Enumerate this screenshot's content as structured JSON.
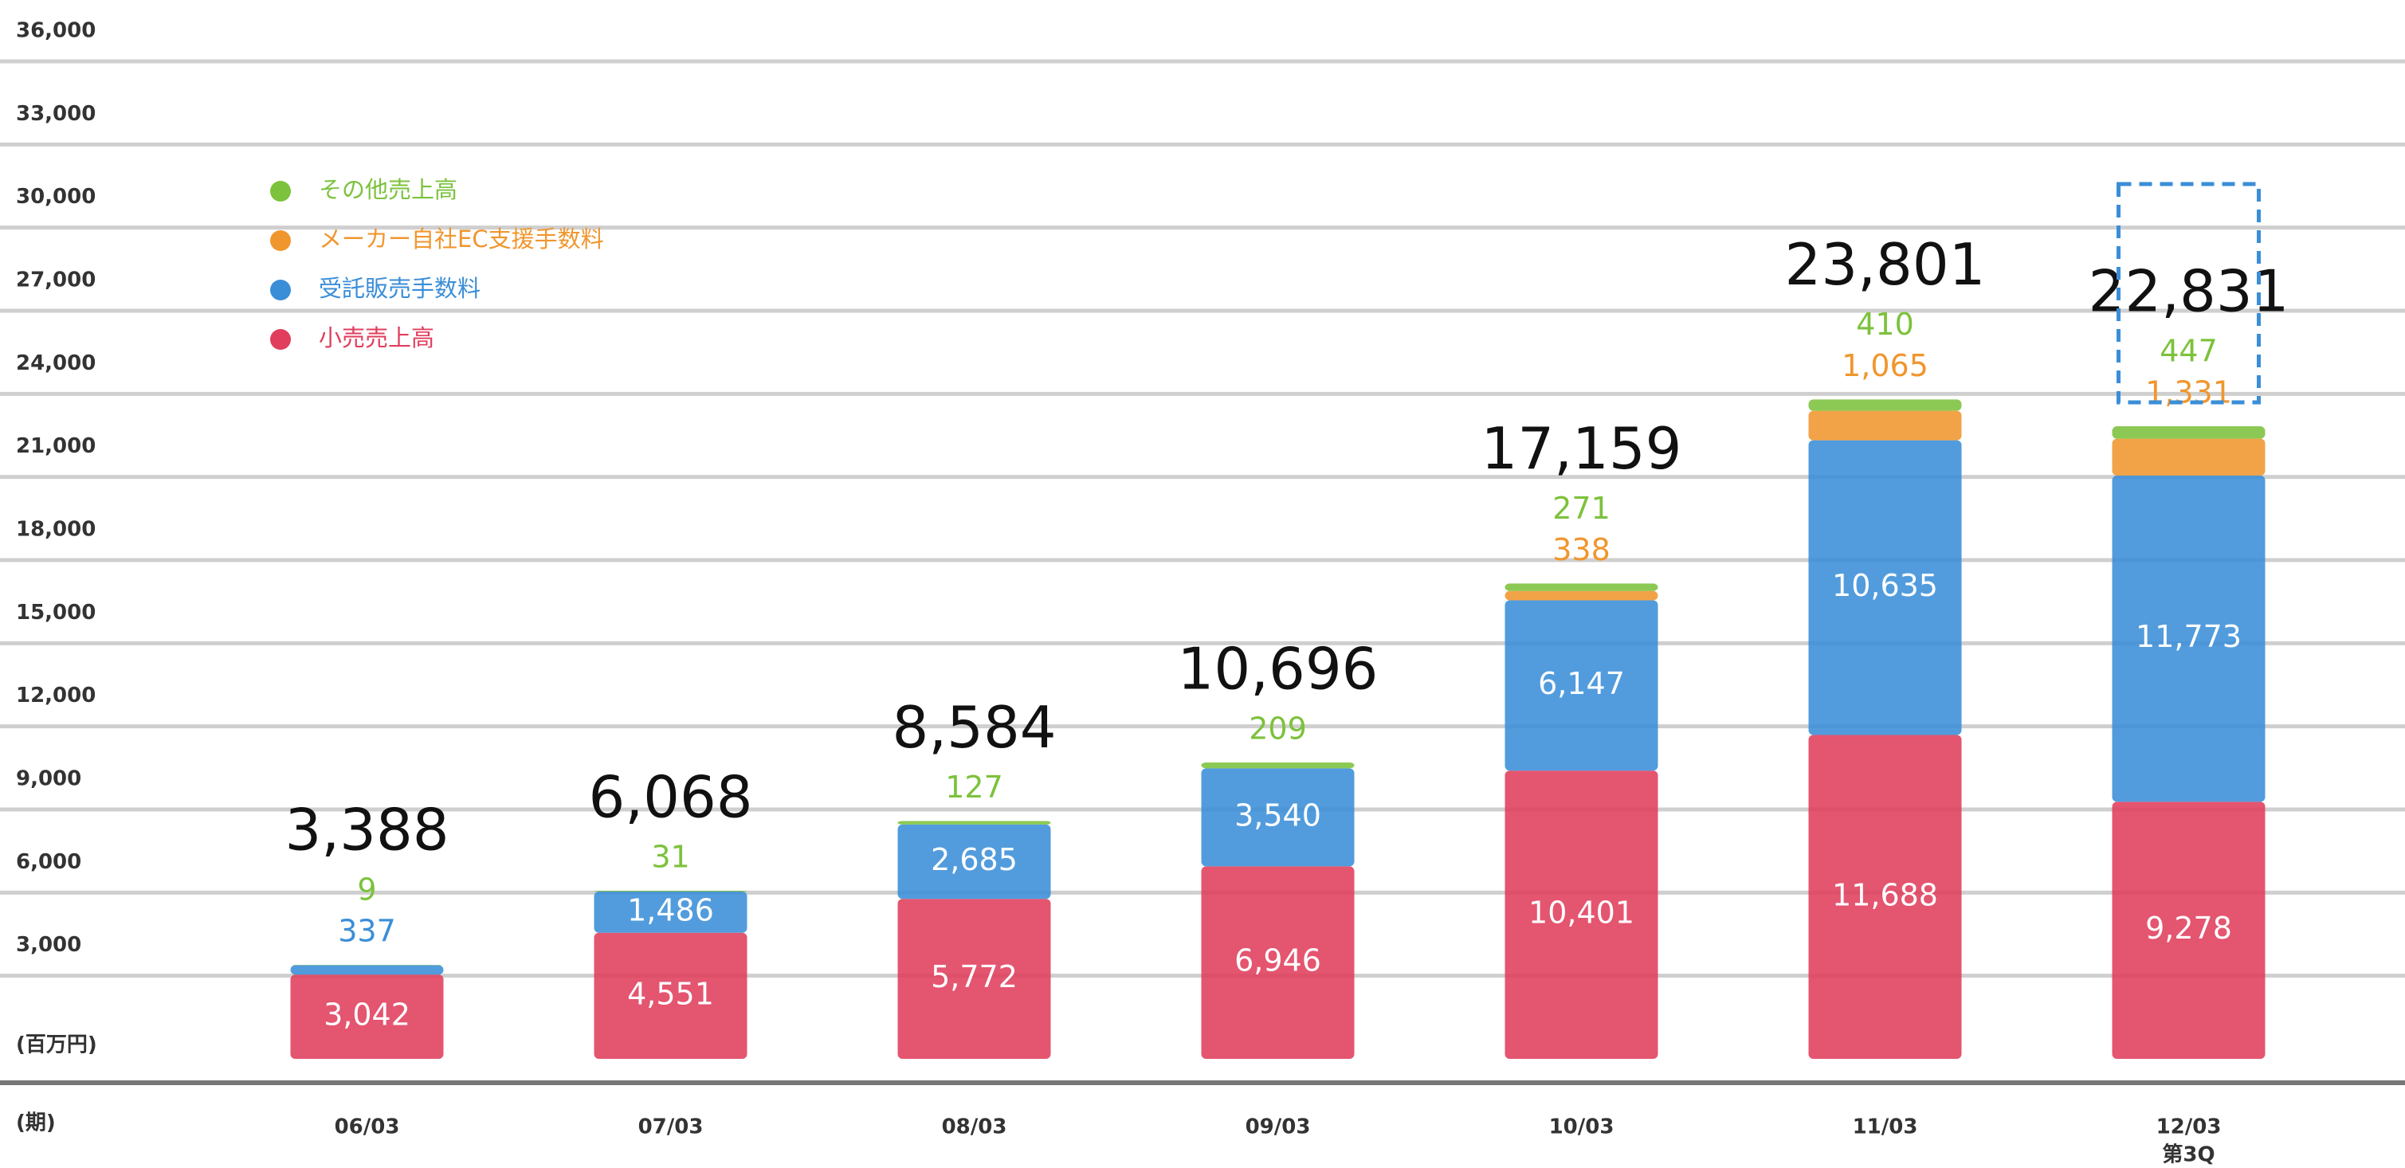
{
  "chart_data": {
    "type": "stacked-bar",
    "y_axis_label": "(百万円)",
    "x_axis_label": "(期)",
    "categories": [
      "06/03",
      "07/03",
      "08/03",
      "09/03",
      "10/03",
      "11/03",
      "12/03"
    ],
    "annotations": [
      {
        "text": "第3Q"
      }
    ],
    "ylim": [
      0,
      36000
    ],
    "yticks": [
      {
        "value": 3000,
        "label": "3,000"
      },
      {
        "value": 6000,
        "label": "6,000"
      },
      {
        "value": 9000,
        "label": "9,000"
      },
      {
        "value": 12000,
        "label": "12,000"
      },
      {
        "value": 15000,
        "label": "15,000"
      },
      {
        "value": 18000,
        "label": "18,000"
      },
      {
        "value": 21000,
        "label": "21,000"
      },
      {
        "value": 24000,
        "label": "24,000"
      },
      {
        "value": 27000,
        "label": "27,000"
      },
      {
        "value": 30000,
        "label": "30,000"
      },
      {
        "value": 33000,
        "label": "33,000"
      },
      {
        "value": 36000,
        "label": "36,000"
      }
    ],
    "grid": true,
    "legend": "upper left",
    "series": [
      {
        "name": "小売売上高",
        "color": "#e03e5c",
        "values": [
          3042,
          4551,
          5772,
          6946,
          10401,
          11688,
          9278
        ],
        "value_labels": [
          "3,042",
          "4,551",
          "5,772",
          "6,946",
          "10,401",
          "11,688",
          "9,278"
        ]
      },
      {
        "name": "受託販売手数料",
        "color": "#3a8ed8",
        "values": [
          337,
          1486,
          2685,
          3540,
          6147,
          10635,
          11773
        ],
        "value_labels": [
          "337",
          "1,486",
          "2,685",
          "3,540",
          "6,147",
          "10,635",
          "11,773"
        ]
      },
      {
        "name": "メーカー自社EC支援手数料",
        "color": "#f0962e",
        "values": [
          null,
          null,
          null,
          null,
          338,
          1065,
          1331
        ],
        "value_labels": [
          null,
          null,
          null,
          null,
          "338",
          "1,065",
          "1,331"
        ]
      },
      {
        "name": "その他売上高",
        "color": "#7cc23c",
        "values": [
          9,
          31,
          127,
          209,
          271,
          410,
          447
        ]
      }
    ],
    "totals": {
      "values": [
        3388,
        6068,
        8584,
        10696,
        17159,
        23801,
        22831
      ],
      "value_labels": [
        "3,388",
        "6,068",
        "8,584",
        "10,696",
        "17,159",
        "23,801",
        "22,831"
      ]
    }
  }
}
